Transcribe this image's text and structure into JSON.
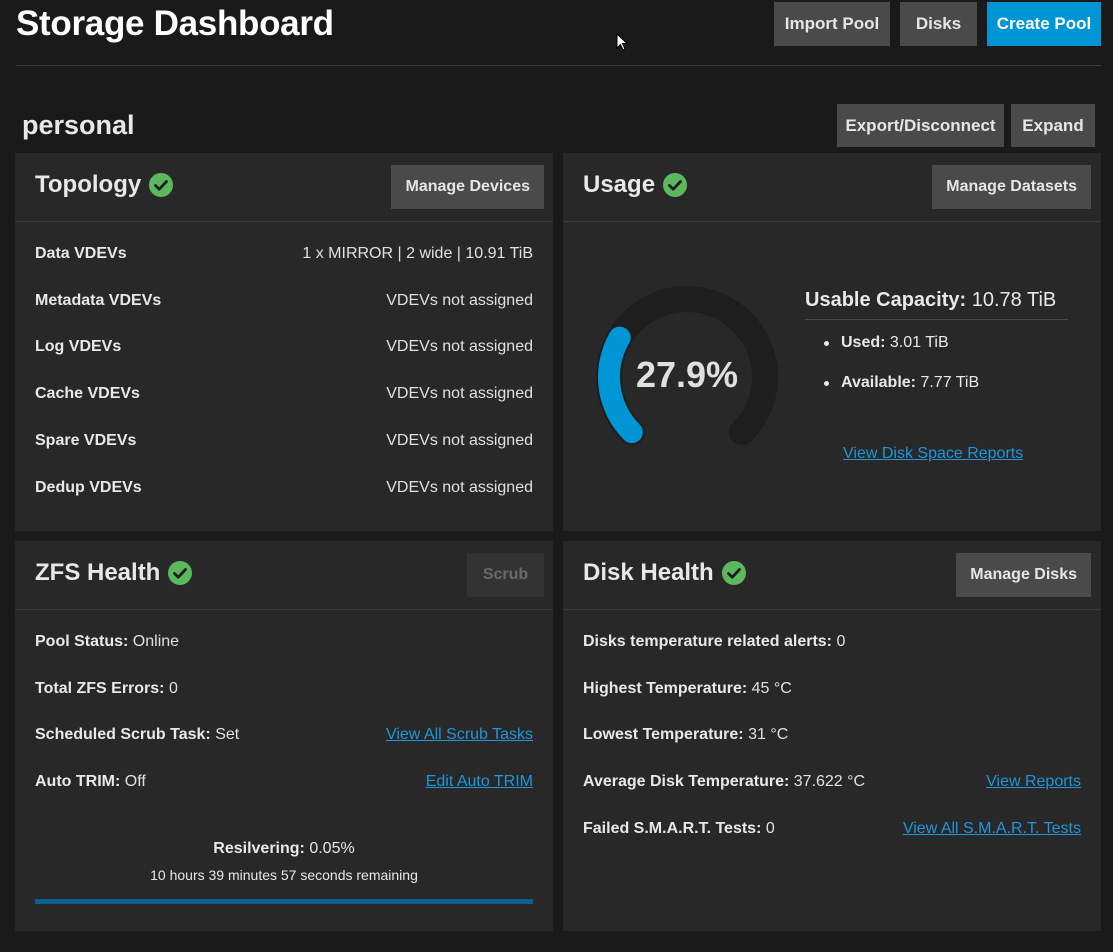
{
  "header": {
    "title": "Storage Dashboard",
    "buttons": {
      "import_pool": "Import Pool",
      "disks": "Disks",
      "create_pool": "Create Pool"
    }
  },
  "pool": {
    "name": "personal",
    "buttons": {
      "export": "Export/Disconnect",
      "expand": "Expand"
    }
  },
  "topology": {
    "title": "Topology",
    "button": "Manage Devices",
    "rows": [
      {
        "label": "Data VDEVs",
        "value": "1 x MIRROR | 2 wide | 10.91 TiB"
      },
      {
        "label": "Metadata VDEVs",
        "value": "VDEVs not assigned"
      },
      {
        "label": "Log VDEVs",
        "value": "VDEVs not assigned"
      },
      {
        "label": "Cache VDEVs",
        "value": "VDEVs not assigned"
      },
      {
        "label": "Spare VDEVs",
        "value": "VDEVs not assigned"
      },
      {
        "label": "Dedup VDEVs",
        "value": "VDEVs not assigned"
      }
    ]
  },
  "usage": {
    "title": "Usage",
    "button": "Manage Datasets",
    "percent_label": "27.9%",
    "percent_value": 27.9,
    "capacity_label": "Usable Capacity:",
    "capacity_value": "10.78 TiB",
    "used_label": "Used:",
    "used_value": "3.01 TiB",
    "available_label": "Available:",
    "available_value": "7.77 TiB",
    "reports_link": "View Disk Space Reports",
    "gauge_color": "#0095d5",
    "gauge_track_color": "#1e1e1e"
  },
  "zfs_health": {
    "title": "ZFS Health",
    "button": "Scrub",
    "pool_status_label": "Pool Status:",
    "pool_status_value": "Online",
    "errors_label": "Total ZFS Errors:",
    "errors_value": "0",
    "scrub_label": "Scheduled Scrub Task:",
    "scrub_value": "Set",
    "scrub_link": "View All Scrub Tasks",
    "trim_label": "Auto TRIM:",
    "trim_value": "Off",
    "trim_link": "Edit Auto TRIM",
    "resilver_label": "Resilvering:",
    "resilver_value": "0.05%",
    "resilver_remaining": "10 hours 39 minutes 57 seconds remaining",
    "resilver_progress": 0.05
  },
  "disk_health": {
    "title": "Disk Health",
    "button": "Manage Disks",
    "alerts_label": "Disks temperature related alerts:",
    "alerts_value": "0",
    "highest_label": "Highest Temperature:",
    "highest_value": "45 °C",
    "lowest_label": "Lowest Temperature:",
    "lowest_value": "31 °C",
    "average_label": "Average Disk Temperature:",
    "average_value": "37.622 °C",
    "reports_link": "View Reports",
    "smart_label": "Failed S.M.A.R.T. Tests:",
    "smart_value": "0",
    "smart_link": "View All S.M.A.R.T. Tests"
  },
  "colors": {
    "accent": "#0095d5",
    "ok_green": "#5cb85c",
    "link": "#1e96d9"
  }
}
